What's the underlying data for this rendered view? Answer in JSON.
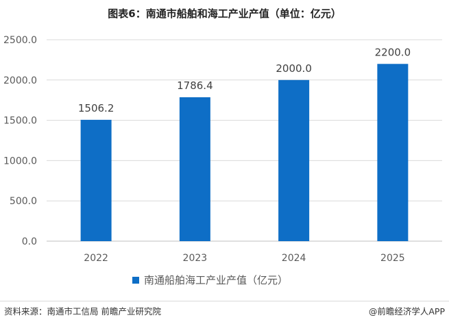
{
  "chart_data": {
    "type": "bar",
    "title": "图表6：南通市船舶和海工产业产值（单位：亿元）",
    "categories": [
      "2022",
      "2023",
      "2024",
      "2025"
    ],
    "series": [
      {
        "name": "南通船舶海工产业产值（亿元）",
        "values": [
          1506.2,
          1786.4,
          2000.0,
          2200.0
        ],
        "color": "#0e6ec6"
      }
    ],
    "data_labels": [
      "1506.2",
      "1786.4",
      "2000.0",
      "2200.0"
    ],
    "y_ticks": [
      "0.0",
      "500.0",
      "1000.0",
      "1500.0",
      "2000.0",
      "2500.0"
    ],
    "ylim": [
      0,
      2500
    ],
    "grid": true,
    "legend_position": "bottom"
  },
  "footer": {
    "source": "资料来源：南通市工信局 前瞻产业研究院",
    "brand": "@前瞻经济学人APP"
  }
}
